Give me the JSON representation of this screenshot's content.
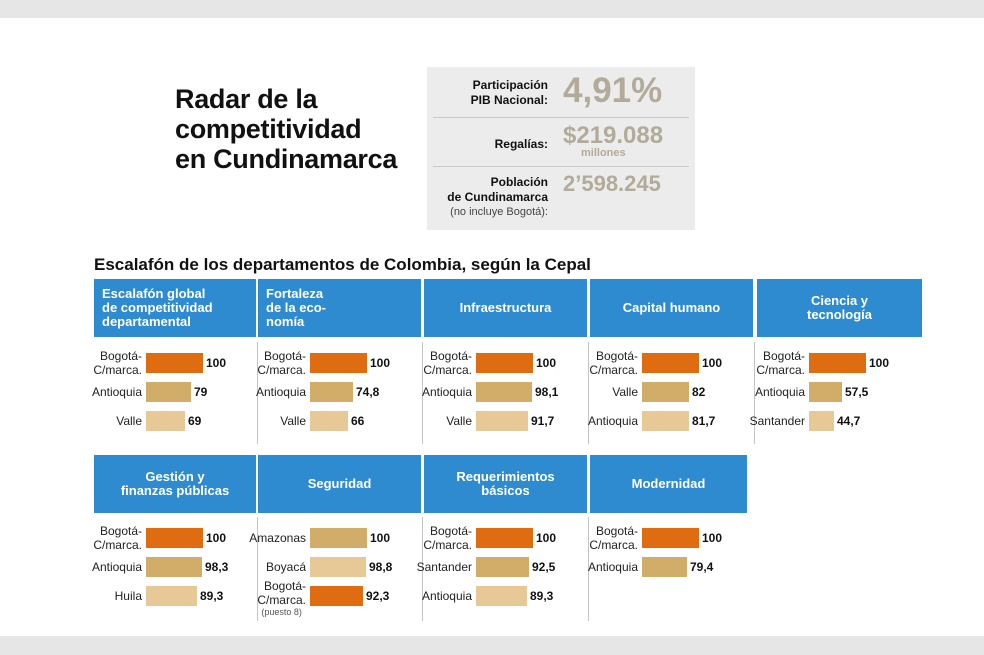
{
  "title": [
    "Radar de la",
    "competitividad",
    "en Cundinamarca"
  ],
  "stats": [
    {
      "label": [
        "Participación",
        "PIB Nacional:"
      ],
      "value": "4,91%",
      "unit": ""
    },
    {
      "label": [
        "Regalías:"
      ],
      "value": "$219.088",
      "unit": "millones"
    },
    {
      "label": [
        "Población",
        "de Cundinamarca"
      ],
      "sublabel": "(no incluye Bogotá):",
      "value": "2’598.245",
      "unit": ""
    }
  ],
  "subtitle": "Escalafón de los departamentos de Colombia, según la Cepal",
  "colors": {
    "header": "#2f8bcf",
    "rank1": "#e06c12",
    "rank2": "#d2ad6a",
    "rank3": "#e6c996",
    "stat_value": "#b3ab99"
  },
  "chart_data": {
    "type": "bar",
    "scale_max": 100,
    "panels": [
      {
        "header": [
          "Escalafón global",
          "de competitividad",
          "departamental"
        ],
        "entries": [
          {
            "name": [
              "Bogotá-",
              "C/marca."
            ],
            "value": 100,
            "label": "100",
            "color": "rank1"
          },
          {
            "name": [
              "Antioquia"
            ],
            "value": 79,
            "label": "79",
            "color": "rank2"
          },
          {
            "name": [
              "Valle"
            ],
            "value": 69,
            "label": "69",
            "color": "rank3"
          }
        ]
      },
      {
        "header": [
          "Fortaleza",
          "de la eco-",
          "nomía"
        ],
        "entries": [
          {
            "name": [
              "Bogotá-",
              "C/marca."
            ],
            "value": 100,
            "label": "100",
            "color": "rank1"
          },
          {
            "name": [
              "Antioquia"
            ],
            "value": 74.8,
            "label": "74,8",
            "color": "rank2"
          },
          {
            "name": [
              "Valle"
            ],
            "value": 66,
            "label": "66",
            "color": "rank3"
          }
        ]
      },
      {
        "header": [
          "Infraestructura"
        ],
        "entries": [
          {
            "name": [
              "Bogotá-",
              "C/marca."
            ],
            "value": 100,
            "label": "100",
            "color": "rank1"
          },
          {
            "name": [
              "Antioquia"
            ],
            "value": 98.1,
            "label": "98,1",
            "color": "rank2"
          },
          {
            "name": [
              "Valle"
            ],
            "value": 91.7,
            "label": "91,7",
            "color": "rank3"
          }
        ]
      },
      {
        "header": [
          "Capital humano"
        ],
        "entries": [
          {
            "name": [
              "Bogotá-",
              "C/marca."
            ],
            "value": 100,
            "label": "100",
            "color": "rank1"
          },
          {
            "name": [
              "Valle"
            ],
            "value": 82,
            "label": "82",
            "color": "rank2"
          },
          {
            "name": [
              "Antioquia"
            ],
            "value": 81.7,
            "label": "81,7",
            "color": "rank3"
          }
        ]
      },
      {
        "header": [
          "Ciencia y",
          "tecnología"
        ],
        "entries": [
          {
            "name": [
              "Bogotá-",
              "C/marca."
            ],
            "value": 100,
            "label": "100",
            "color": "rank1"
          },
          {
            "name": [
              "Antioquia"
            ],
            "value": 57.5,
            "label": "57,5",
            "color": "rank2"
          },
          {
            "name": [
              "Santander"
            ],
            "value": 44.7,
            "label": "44,7",
            "color": "rank3"
          }
        ]
      },
      {
        "header": [
          "Gestión y",
          "finanzas públicas"
        ],
        "entries": [
          {
            "name": [
              "Bogotá-",
              "C/marca."
            ],
            "value": 100,
            "label": "100",
            "color": "rank1"
          },
          {
            "name": [
              "Antioquia"
            ],
            "value": 98.3,
            "label": "98,3",
            "color": "rank2"
          },
          {
            "name": [
              "Huila"
            ],
            "value": 89.3,
            "label": "89,3",
            "color": "rank3"
          }
        ]
      },
      {
        "header": [
          "Seguridad"
        ],
        "entries": [
          {
            "name": [
              "Amazonas"
            ],
            "value": 100,
            "label": "100",
            "color": "rank2"
          },
          {
            "name": [
              "Boyacá"
            ],
            "value": 98.8,
            "label": "98,8",
            "color": "rank3"
          },
          {
            "name": [
              "Bogotá-",
              "C/marca."
            ],
            "note": "(puesto 8)",
            "value": 92.3,
            "label": "92,3",
            "color": "rank1"
          }
        ]
      },
      {
        "header": [
          "Requerimientos",
          "básicos"
        ],
        "entries": [
          {
            "name": [
              "Bogotá-",
              "C/marca."
            ],
            "value": 100,
            "label": "100",
            "color": "rank1"
          },
          {
            "name": [
              "Santander"
            ],
            "value": 92.5,
            "label": "92,5",
            "color": "rank2"
          },
          {
            "name": [
              "Antioquia"
            ],
            "value": 89.3,
            "label": "89,3",
            "color": "rank3"
          }
        ]
      },
      {
        "header": [
          "Modernidad"
        ],
        "entries": [
          {
            "name": [
              "Bogotá-",
              "C/marca."
            ],
            "value": 100,
            "label": "100",
            "color": "rank1"
          },
          {
            "name": [
              "Antioquia"
            ],
            "value": 79.4,
            "label": "79,4",
            "color": "rank2"
          }
        ]
      }
    ]
  }
}
